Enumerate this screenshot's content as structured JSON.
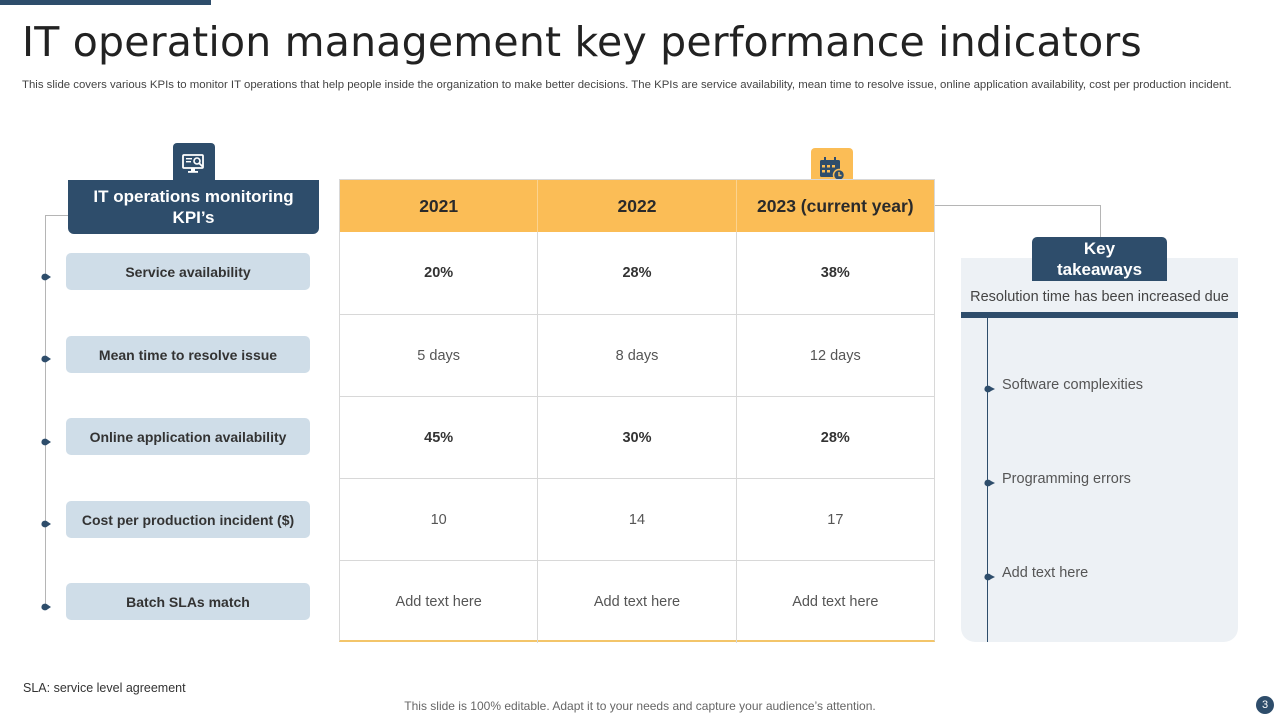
{
  "title": "IT operation management key performance indicators",
  "subtitle": "This slide covers various KPIs to monitor IT operations that help people inside the organization to make better decisions. The KPIs are service availability, mean time to resolve issue, online application availability, cost per production incident.",
  "kpi_panel": {
    "header": "IT operations monitoring KPI’s",
    "icon": "monitor-search-icon",
    "items": [
      "Service availability",
      "Mean time to resolve issue",
      "Online application availability",
      "Cost per production incident ($)",
      "Batch SLAs match"
    ]
  },
  "table": {
    "icon": "calendar-icon",
    "columns": [
      "2021",
      "2022",
      "2023 (current year)"
    ],
    "rows": [
      [
        "20%",
        "28%",
        "38%"
      ],
      [
        "5 days",
        "8 days",
        "12 days"
      ],
      [
        "45%",
        "30%",
        "28%"
      ],
      [
        "10",
        "14",
        "17"
      ],
      [
        "Add text here",
        "Add text here",
        "Add text here"
      ]
    ]
  },
  "takeaways": {
    "header": "Key takeaways",
    "subtitle": "Resolution time has been increased due",
    "items": [
      "Software complexities",
      "Programming errors",
      "Add text here"
    ]
  },
  "footnote": "SLA: service  level  agreement",
  "footer": "This slide is 100% editable. Adapt it to your needs and capture your audience’s attention.",
  "page_number": "3",
  "colors": {
    "navy": "#2e4d6b",
    "amber": "#fbbd56",
    "light_blue": "#cfdde8",
    "panel_bg": "#edf1f5"
  }
}
